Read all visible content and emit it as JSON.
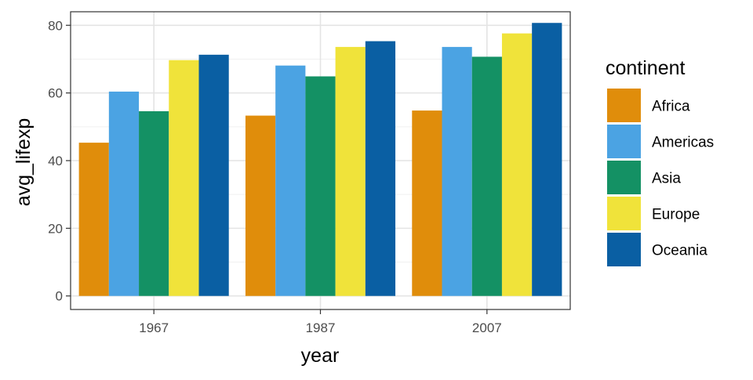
{
  "chart_data": {
    "type": "bar",
    "xlabel": "year",
    "ylabel": "avg_lifexp",
    "categories": [
      "1967",
      "1987",
      "2007"
    ],
    "ylim": [
      0,
      80
    ],
    "y_ticks": [
      0,
      20,
      40,
      60,
      80
    ],
    "grid": true,
    "legend": {
      "title": "continent",
      "position": "right"
    },
    "series": [
      {
        "name": "Africa",
        "color": "#E08D0B",
        "values": [
          45.3,
          53.3,
          54.8
        ]
      },
      {
        "name": "Americas",
        "color": "#4BA3E3",
        "values": [
          60.4,
          68.1,
          73.6
        ]
      },
      {
        "name": "Asia",
        "color": "#149164",
        "values": [
          54.6,
          64.9,
          70.7
        ]
      },
      {
        "name": "Europe",
        "color": "#F0E33A",
        "values": [
          69.7,
          73.6,
          77.6
        ]
      },
      {
        "name": "Oceania",
        "color": "#0A5FA3",
        "values": [
          71.3,
          75.3,
          80.7
        ]
      }
    ]
  }
}
